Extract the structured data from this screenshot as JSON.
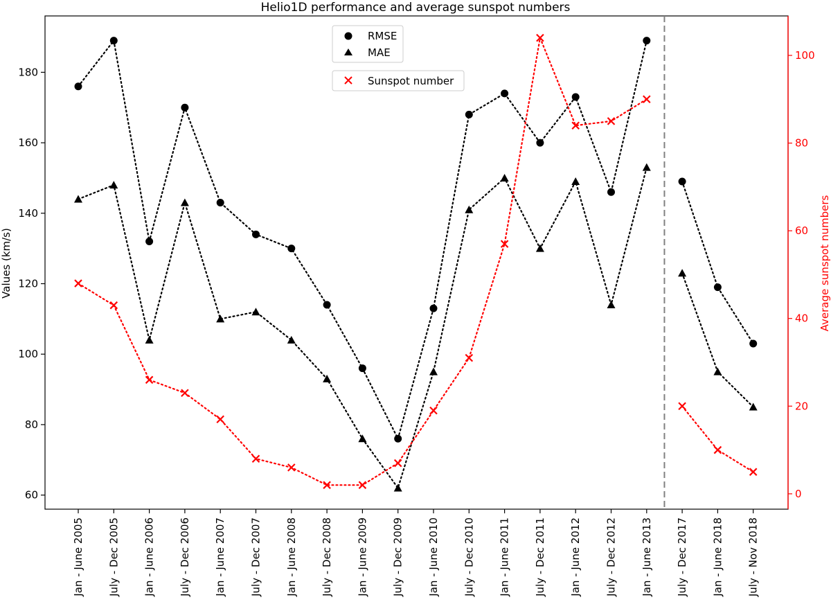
{
  "chart_data": {
    "type": "line",
    "title": "Helio1D performance and average sunspot numbers",
    "ylabel": "Values (km/s)",
    "y2label": "Average sunspot numbers",
    "categories": [
      "Jan - June 2005",
      "July - Dec 2005",
      "Jan - June 2006",
      "July - Dec 2006",
      "Jan - June 2007",
      "July - Dec 2007",
      "Jan - June 2008",
      "July - Dec 2008",
      "Jan - June 2009",
      "July - Dec 2009",
      "Jan - June 2010",
      "July - Dec 2010",
      "Jan - June 2011",
      "July - Dec 2011",
      "Jan - June 2012",
      "July - Dec 2012",
      "Jan - June 2013",
      "July - Dec 2017",
      "Jan - June 2018",
      "July - Nov 2018"
    ],
    "ylim": [
      56,
      196
    ],
    "y2lim": [
      -3.5,
      109
    ],
    "yticks": [
      60,
      80,
      100,
      120,
      140,
      160,
      180
    ],
    "y2ticks": [
      0,
      20,
      40,
      60,
      80,
      100
    ],
    "grid": false,
    "legend_placement": "top-center",
    "break_after_index": 16,
    "series": [
      {
        "name": "RMSE",
        "axis": "left",
        "marker": "circle",
        "color": "#000000",
        "values": [
          176,
          189,
          132,
          170,
          143,
          134,
          130,
          114,
          96,
          76,
          113,
          168,
          174,
          160,
          173,
          146,
          189,
          149,
          119,
          103
        ]
      },
      {
        "name": "MAE",
        "axis": "left",
        "marker": "triangle",
        "color": "#000000",
        "values": [
          144,
          148,
          104,
          143,
          110,
          112,
          104,
          93,
          76,
          62,
          95,
          141,
          150,
          130,
          149,
          114,
          153,
          123,
          95,
          85
        ]
      },
      {
        "name": "Sunspot number",
        "axis": "right",
        "marker": "x",
        "color": "#ff0000",
        "values": [
          48,
          43,
          26,
          23,
          17,
          8,
          6,
          2,
          2,
          7,
          19,
          31,
          57,
          104,
          84,
          85,
          90,
          20,
          10,
          5
        ]
      }
    ]
  }
}
